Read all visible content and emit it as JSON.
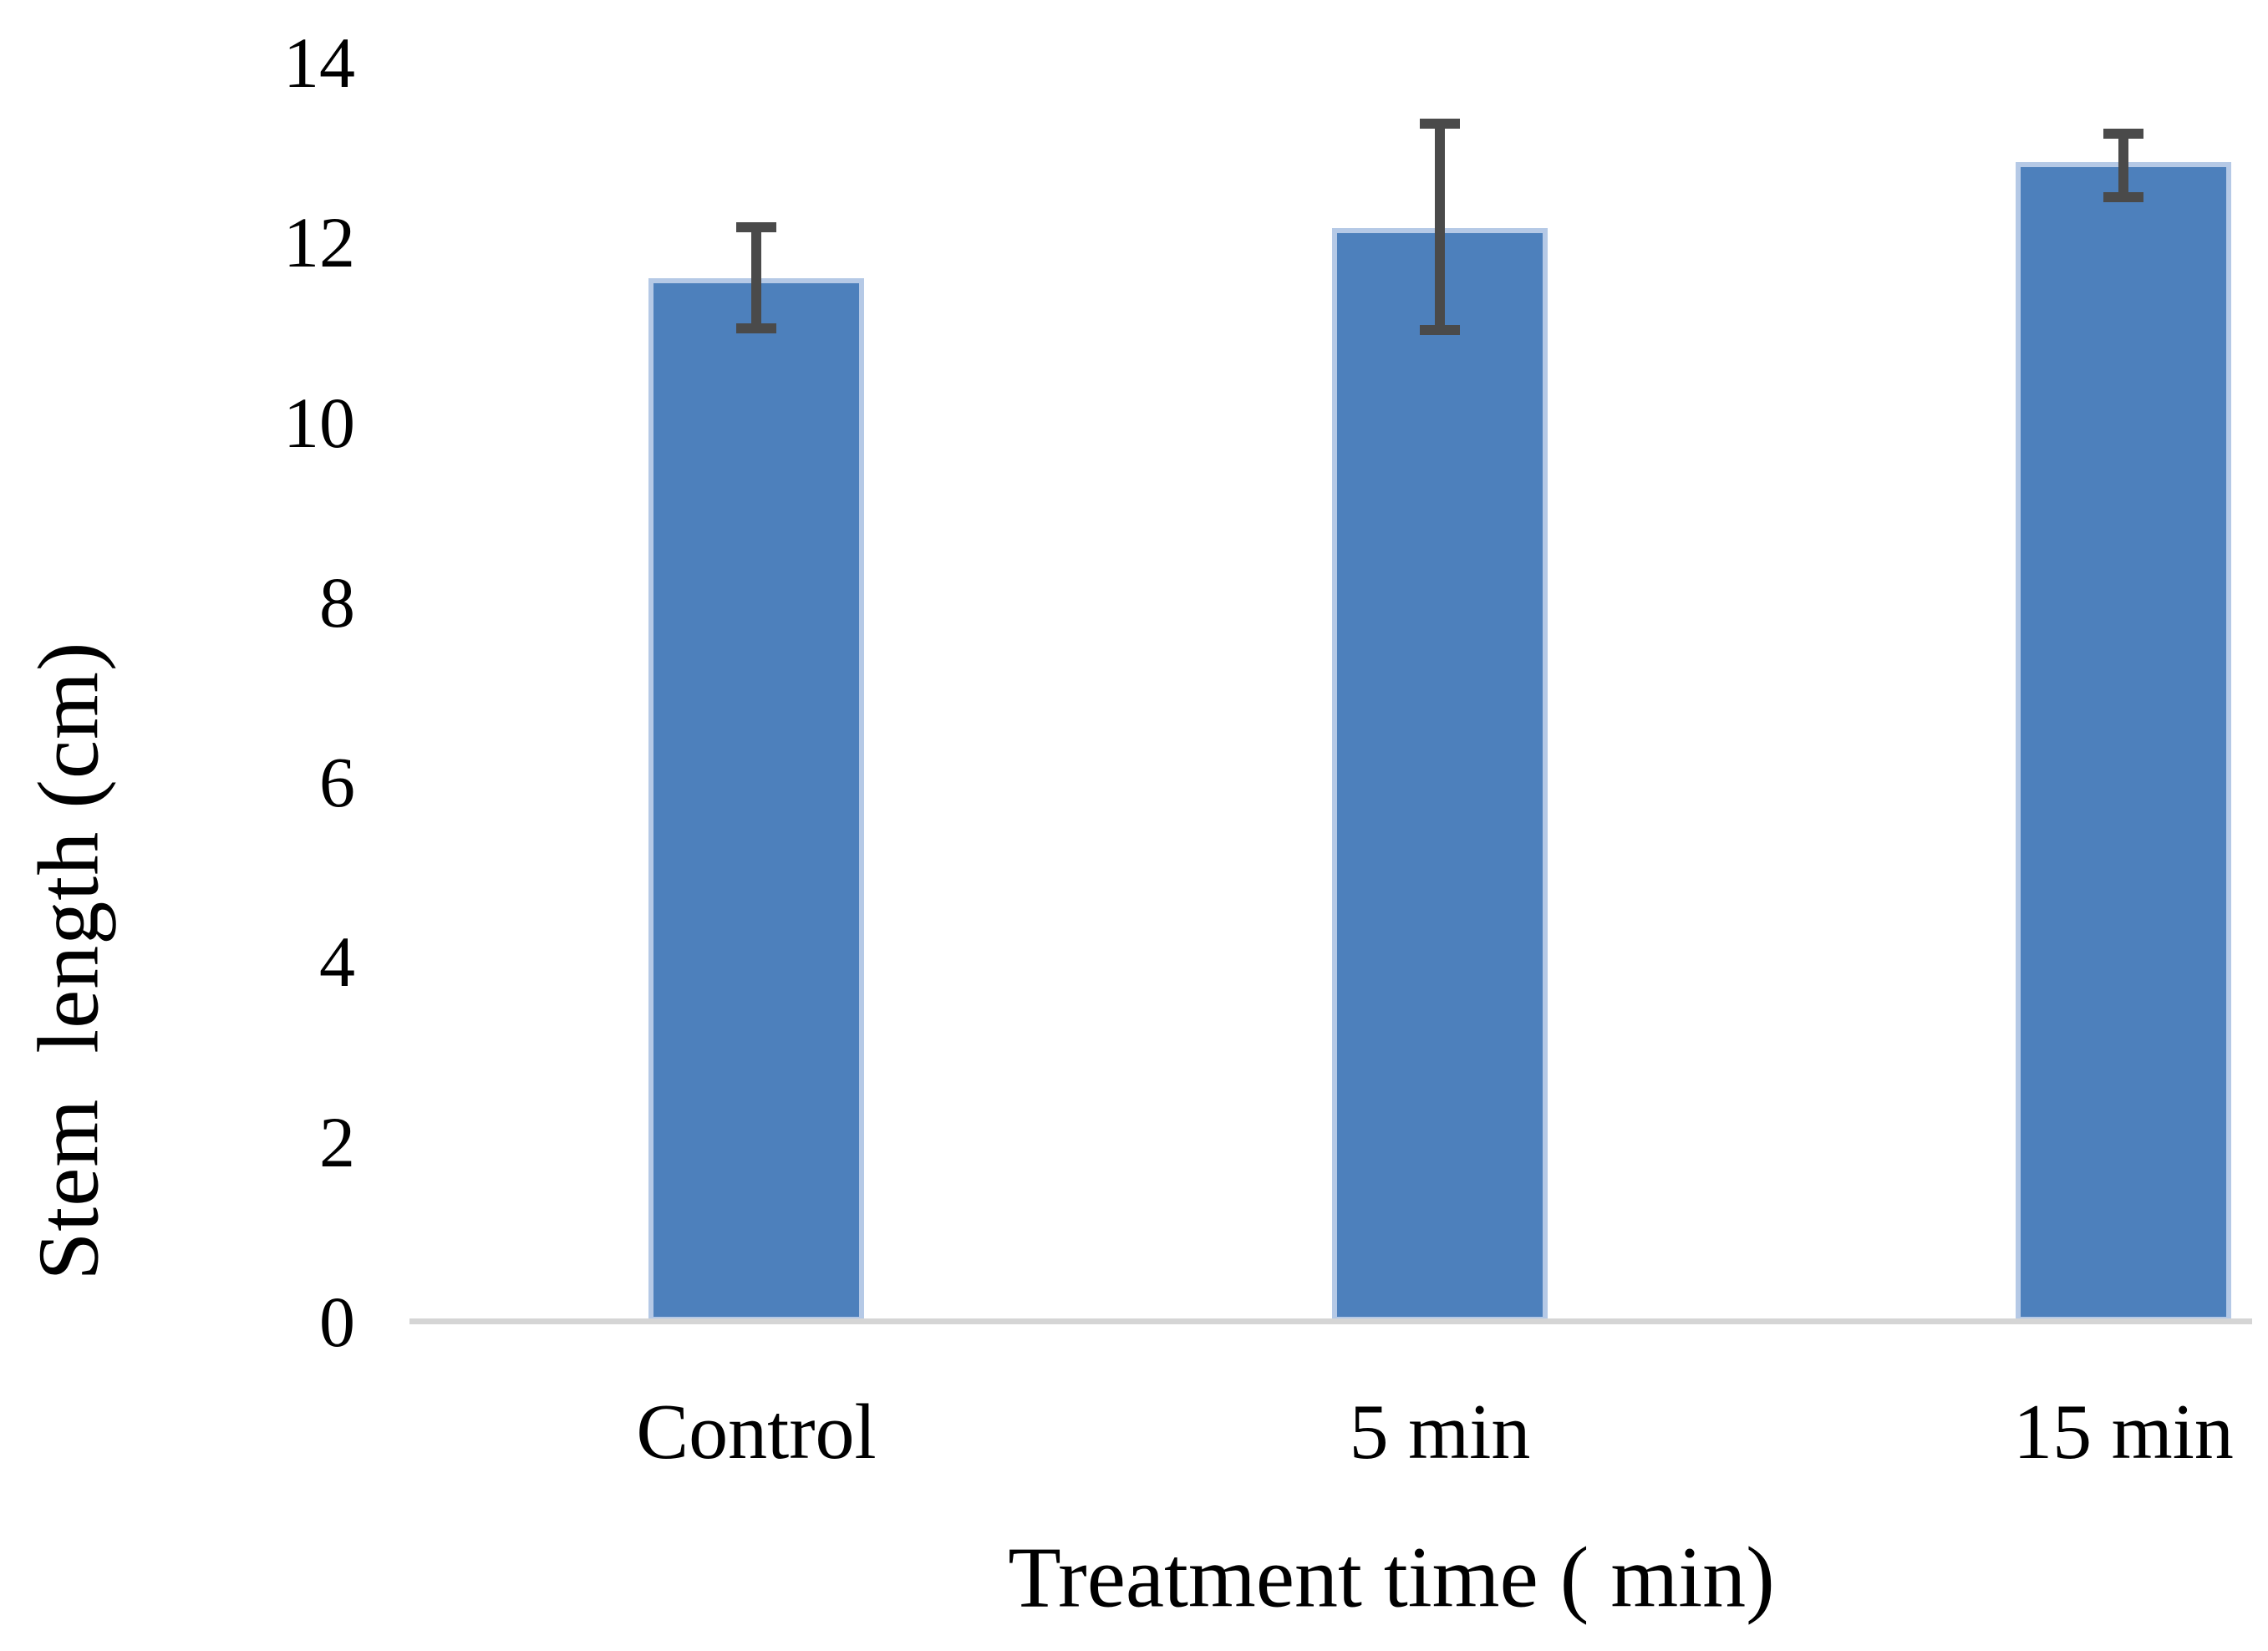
{
  "chart_data": {
    "type": "bar",
    "categories": [
      "Control",
      "5 min",
      "15 min"
    ],
    "values": [
      11.6,
      12.16,
      12.89
    ],
    "error_plus": [
      0.57,
      1.16,
      0.32
    ],
    "error_minus": [
      0.55,
      1.13,
      0.39
    ],
    "title": "",
    "xlabel": "Treatment time ( min)",
    "ylabel": "Stem  length (cm)",
    "ylim": [
      0,
      14
    ],
    "ytick_step": 2,
    "ytick_labels": [
      "0",
      "2",
      "4",
      "6",
      "8",
      "10",
      "12",
      "14"
    ],
    "grid": false,
    "legend": null,
    "colors": {
      "bar_fill": "#4d80bc",
      "bar_border": "#b5c9e6",
      "error_bar": "#4a4a4a",
      "axis_line": "#d5d5d5",
      "text": "#000000",
      "background": "#ffffff"
    }
  }
}
